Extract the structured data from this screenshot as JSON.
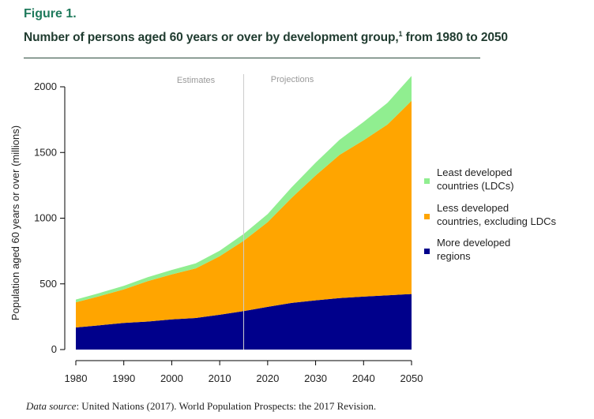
{
  "figure": {
    "label": "Figure 1.",
    "title": "Number of persons aged 60 years or over by development group,",
    "footnote_mark": "1",
    "title_suffix": " from 1980 to 2050"
  },
  "source": {
    "prefix": "Data source",
    "text": ": United Nations (2017). World Population Prospects: the 2017 Revision."
  },
  "colors": {
    "ldc": "#90ee90",
    "less_developed": "#ffa500",
    "more_developed": "#00008b",
    "divider": "#cccccc",
    "header_green": "#1f7a5c"
  },
  "chart_data": {
    "type": "area",
    "stacked": true,
    "x": [
      1980,
      1985,
      1990,
      1995,
      2000,
      2005,
      2010,
      2015,
      2020,
      2025,
      2030,
      2035,
      2040,
      2045,
      2050
    ],
    "series": [
      {
        "name": "More developed regions",
        "values": [
          168,
          185,
          203,
          213,
          230,
          240,
          265,
          293,
          325,
          355,
          375,
          392,
          403,
          413,
          423
        ]
      },
      {
        "name": "Less developed countries, excluding LDCs",
        "values": [
          192,
          222,
          255,
          308,
          342,
          378,
          445,
          535,
          645,
          800,
          950,
          1090,
          1190,
          1300,
          1470
        ]
      },
      {
        "name": "Least developed countries (LDCs)",
        "values": [
          21,
          24,
          27,
          30,
          34,
          38,
          42,
          52,
          62,
          80,
          98,
          115,
          140,
          165,
          190
        ]
      }
    ],
    "legend": [
      {
        "line1": "Least developed",
        "line2": "countries (LDCs)"
      },
      {
        "line1": "Less developed",
        "line2": "countries, excluding LDCs"
      },
      {
        "line1": "More developed",
        "line2": "regions"
      }
    ],
    "legend_position": "right",
    "ylabel": "Population aged 60 years or over (millions)",
    "xlabel": "",
    "ylim": [
      0,
      2000
    ],
    "xlim": [
      1980,
      2050
    ],
    "x_ticks": [
      1980,
      1990,
      2000,
      2010,
      2020,
      2030,
      2040,
      2050
    ],
    "y_ticks": [
      0,
      500,
      1000,
      1500,
      2000
    ],
    "divider_x": 2015,
    "region_labels": [
      "Estimates",
      "Projections"
    ],
    "grid": false
  }
}
